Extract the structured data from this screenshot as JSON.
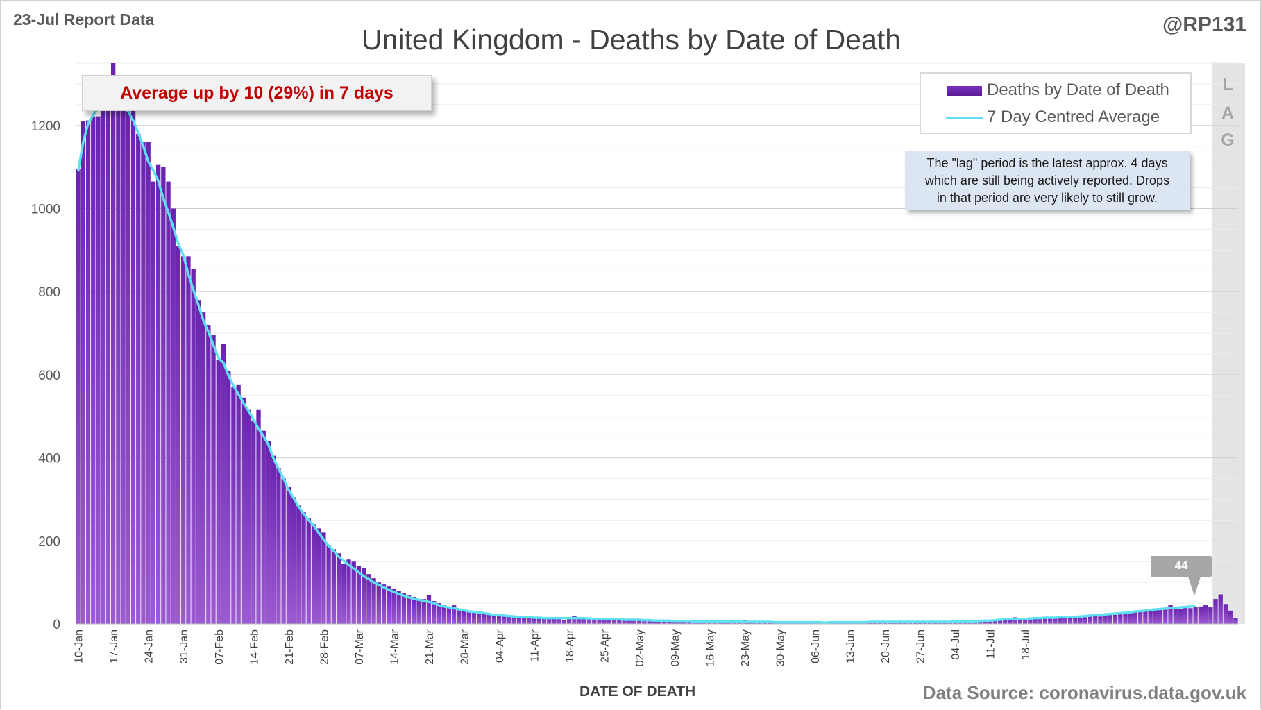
{
  "report_label": "23-Jul Report Data",
  "handle": "@RP131",
  "source": "Data Source: coronavirus.data.gov.uk",
  "callout": "Average up by 10 (29%) in 7 days",
  "lag_note": {
    "lines": [
      "The \"lag\" period is the latest approx. 4 days",
      "which are still being actively reported.  Drops",
      "in that period are very likely to still grow."
    ]
  },
  "lag_letters": [
    "L",
    "A",
    "G"
  ],
  "annotation": {
    "value": "44"
  },
  "colors": {
    "bar": "#7030a0",
    "average": "#5ee0f2",
    "lag_shade": "#e4e4e4"
  },
  "chart_data": {
    "type": "bar",
    "title": "United Kingdom - Deaths by Date of Death",
    "xlabel": "DATE OF DEATH",
    "ylabel": "",
    "ylim": [
      0,
      1350
    ],
    "yticks": [
      0,
      200,
      400,
      600,
      800,
      1000,
      1200
    ],
    "x_tick_labels": [
      "10-Jan",
      "17-Jan",
      "24-Jan",
      "31-Jan",
      "07-Feb",
      "14-Feb",
      "21-Feb",
      "28-Feb",
      "07-Mar",
      "14-Mar",
      "21-Mar",
      "28-Mar",
      "04-Apr",
      "11-Apr",
      "18-Apr",
      "25-Apr",
      "02-May",
      "09-May",
      "16-May",
      "23-May",
      "30-May",
      "06-Jun",
      "13-Jun",
      "20-Jun",
      "27-Jun",
      "04-Jul",
      "11-Jul",
      "18-Jul"
    ],
    "x_tick_every": 7,
    "first_date": "10-Jan",
    "lag_days": 4,
    "grid": true,
    "legend_position": "top-right",
    "series": [
      {
        "name": "Deaths by Date of Death",
        "type": "bar",
        "values": [
          1095,
          1210,
          1212,
          1222,
          1222,
          1255,
          1272,
          1350,
          1300,
          1260,
          1232,
          1250,
          1180,
          1160,
          1160,
          1065,
          1105,
          1100,
          1065,
          1000,
          910,
          885,
          885,
          855,
          780,
          750,
          720,
          695,
          635,
          675,
          610,
          570,
          575,
          545,
          515,
          490,
          515,
          465,
          440,
          405,
          375,
          350,
          330,
          305,
          285,
          270,
          255,
          240,
          230,
          220,
          190,
          180,
          170,
          145,
          155,
          150,
          140,
          135,
          120,
          110,
          100,
          95,
          90,
          85,
          80,
          75,
          70,
          65,
          60,
          60,
          70,
          55,
          50,
          45,
          40,
          45,
          35,
          30,
          30,
          30,
          30,
          25,
          25,
          22,
          20,
          20,
          18,
          18,
          15,
          15,
          17,
          14,
          13,
          14,
          12,
          12,
          16,
          10,
          12,
          20,
          15,
          14,
          13,
          12,
          13,
          11,
          11,
          11,
          10,
          10,
          9,
          12,
          10,
          10,
          9,
          8,
          8,
          9,
          7,
          7,
          8,
          6,
          8,
          6,
          7,
          7,
          5,
          6,
          6,
          5,
          5,
          5,
          6,
          10,
          5,
          5,
          4,
          5,
          5,
          5,
          4,
          5,
          3,
          4,
          4,
          4,
          3,
          4,
          3,
          3,
          3,
          4,
          3,
          4,
          3,
          3,
          3,
          3,
          4,
          4,
          4,
          5,
          5,
          4,
          4,
          5,
          5,
          4,
          4,
          5,
          4,
          5,
          5,
          4,
          5,
          5,
          6,
          5,
          5,
          5,
          6,
          7,
          6,
          7,
          8,
          9,
          9,
          16,
          10,
          12,
          10,
          12,
          15,
          14,
          13,
          15,
          14,
          18,
          16,
          14,
          15,
          16,
          18,
          20,
          18,
          22,
          24,
          22,
          23,
          27,
          27,
          30,
          33,
          33,
          31,
          33,
          35,
          38,
          45,
          35,
          35,
          40,
          38,
          40,
          42,
          45,
          40,
          60,
          71,
          48,
          32,
          15
        ]
      },
      {
        "name": "7 Day Centred Average",
        "type": "line",
        "values": [
          1089,
          1160,
          1205,
          1225,
          1243,
          1258,
          1262,
          1259,
          1256,
          1248,
          1234,
          1211,
          1182,
          1150,
          1113,
          1092,
          1066,
          1024,
          991,
          954,
          915,
          887,
          842,
          804,
          768,
          730,
          703,
          671,
          640,
          629,
          598,
          573,
          553,
          532,
          513,
          492,
          470,
          452,
          431,
          398,
          373,
          350,
          323,
          303,
          282,
          265,
          250,
          237,
          219,
          203,
          188,
          176,
          162,
          152,
          142,
          133,
          124,
          115,
          108,
          100,
          94,
          88,
          82,
          77,
          72,
          68,
          64,
          61,
          58,
          56,
          53,
          50,
          45,
          42,
          40,
          38,
          35,
          33,
          30,
          29,
          28,
          26,
          24,
          22,
          21,
          20,
          19,
          18,
          17,
          16,
          16,
          15,
          15,
          14,
          14,
          14,
          14,
          14,
          14,
          14,
          14,
          14,
          13,
          12,
          12,
          11,
          11,
          11,
          11,
          10,
          10,
          10,
          10,
          9,
          9,
          8,
          8,
          8,
          8,
          7,
          7,
          7,
          7,
          6,
          6,
          6,
          6,
          6,
          6,
          6,
          6,
          6,
          6,
          5,
          5,
          5,
          5,
          5,
          5,
          4,
          4,
          4,
          4,
          4,
          4,
          4,
          4,
          4,
          4,
          3,
          4,
          4,
          4,
          4,
          4,
          4,
          4,
          4,
          5,
          5,
          5,
          5,
          5,
          5,
          5,
          5,
          5,
          5,
          5,
          5,
          5,
          5,
          5,
          5,
          5,
          6,
          6,
          6,
          6,
          6,
          7,
          8,
          8,
          9,
          10,
          11,
          11,
          12,
          12,
          12,
          13,
          14,
          14,
          15,
          15,
          15,
          16,
          16,
          17,
          17,
          18,
          19,
          20,
          21,
          22,
          23,
          24,
          25,
          26,
          27,
          28,
          30,
          31,
          32,
          34,
          35,
          36,
          37,
          38,
          39,
          40,
          41,
          42,
          44
        ]
      }
    ]
  }
}
